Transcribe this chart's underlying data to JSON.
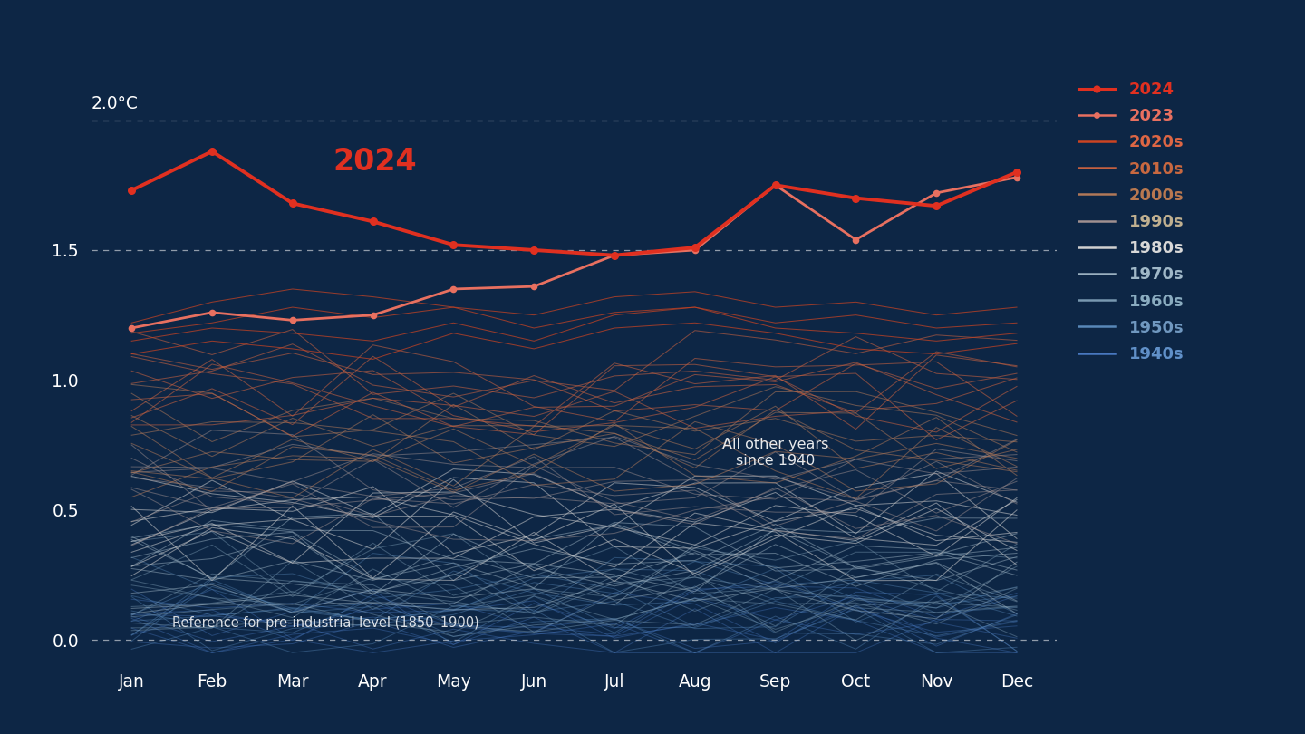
{
  "bg_color": "#0d2645",
  "months": [
    "Jan",
    "Feb",
    "Mar",
    "Apr",
    "May",
    "Jun",
    "Jul",
    "Aug",
    "Sep",
    "Oct",
    "Nov",
    "Dec"
  ],
  "year_2024": [
    1.73,
    1.88,
    1.68,
    1.61,
    1.52,
    1.5,
    1.48,
    1.51,
    1.75,
    1.7,
    1.67,
    1.8
  ],
  "year_2023": [
    1.2,
    1.26,
    1.23,
    1.25,
    1.35,
    1.36,
    1.48,
    1.5,
    1.75,
    1.54,
    1.72,
    1.78
  ],
  "color_2024": "#e03020",
  "color_2023": "#e87060",
  "label_2024": "2024",
  "label_2023": "2023",
  "decade_colors": {
    "2020s": "#cc4422",
    "2010s": "#c46040",
    "2000s": "#b07858",
    "1990s": "#a09090",
    "1980s": "#d0d0d0",
    "1970s": "#9ab0c0",
    "1960s": "#7898b0",
    "1950s": "#5888b8",
    "1940s": "#4878c0"
  },
  "decade_alpha": {
    "2020s": 0.7,
    "2010s": 0.6,
    "2000s": 0.55,
    "1990s": 0.5,
    "1980s": 0.55,
    "1970s": 0.5,
    "1960s": 0.45,
    "1950s": 0.4,
    "1940s": 0.38
  },
  "ylim": [
    -0.08,
    2.18
  ],
  "yticks": [
    0.0,
    0.5,
    1.0,
    1.5
  ],
  "ytick_labels": [
    "0.0",
    "0.5",
    "1.0",
    "1.5"
  ],
  "top_label": "2.0°C",
  "dashed_lines": [
    0.0,
    1.5,
    2.0
  ],
  "annotation_2024": "2024",
  "annotation_all": "All other years\nsince 1940",
  "annotation_ref": "Reference for pre-industrial level (1850–1900)"
}
